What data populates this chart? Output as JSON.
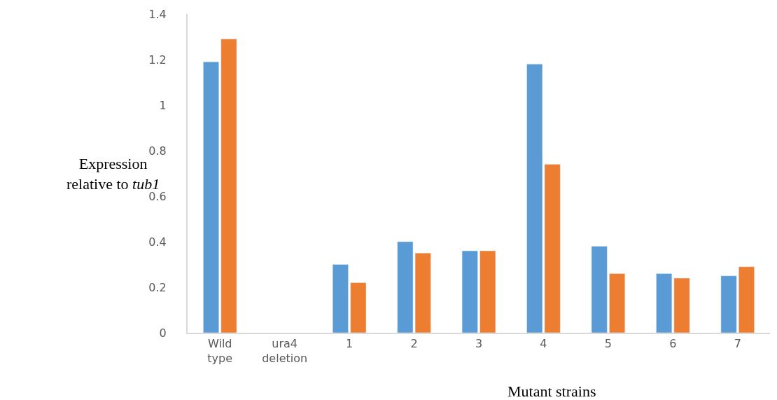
{
  "chart_data": {
    "type": "bar",
    "xlabel": "Mutant strains",
    "ylabel": "Expression relative to tub1",
    "categories": [
      "Wild type",
      "ura4 deletion",
      "1",
      "2",
      "3",
      "4",
      "5",
      "6",
      "7"
    ],
    "series": [
      {
        "color": "#5b9bd5",
        "values": [
          1.19,
          null,
          0.3,
          0.4,
          0.36,
          1.18,
          0.38,
          0.26,
          0.25
        ]
      },
      {
        "color": "#ed7d31",
        "values": [
          1.29,
          null,
          0.22,
          0.35,
          0.36,
          0.74,
          0.26,
          0.24,
          0.29
        ]
      }
    ],
    "ylim": [
      0,
      1.4
    ],
    "yticks": [
      0,
      0.2,
      0.4,
      0.6,
      0.8,
      1,
      1.2,
      1.4
    ]
  }
}
